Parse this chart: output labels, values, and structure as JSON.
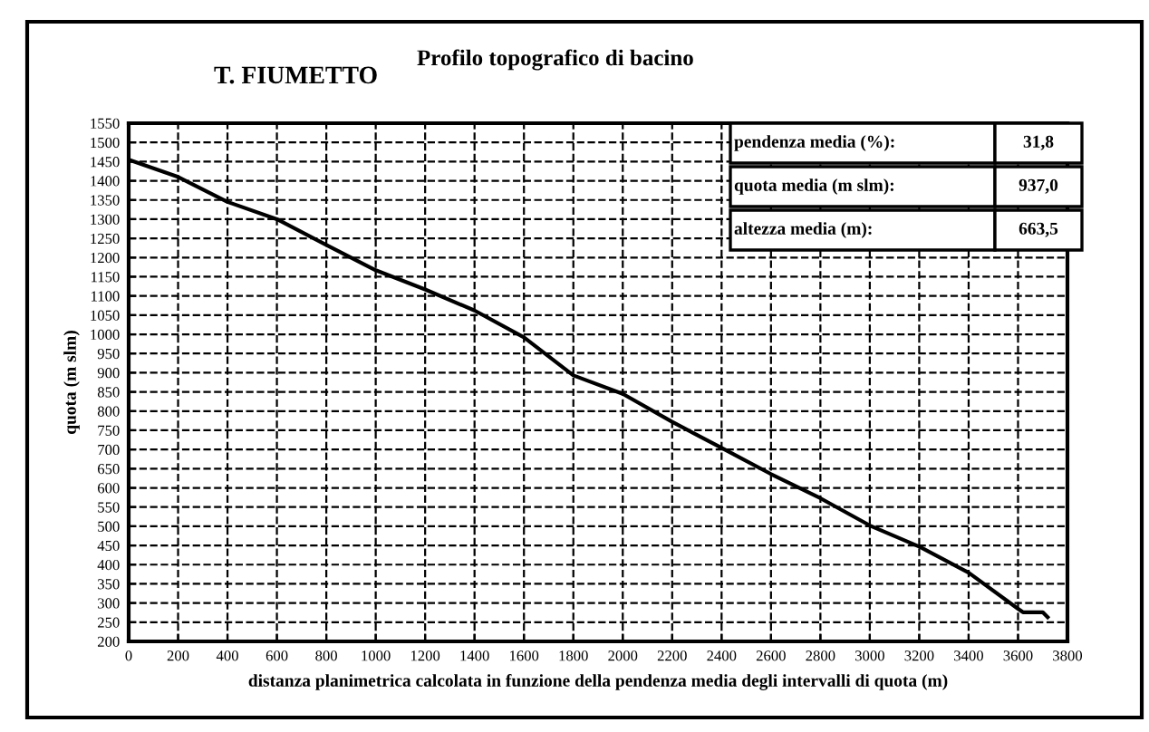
{
  "chart_data": {
    "type": "line",
    "title": "Profilo topografico di bacino",
    "subtitle": "T. FIUMETTO",
    "xlabel": "distanza planimetrica calcolata in funzione della pendenza media degli intervalli di quota (m)",
    "ylabel": "quota (m slm)",
    "annotations": [
      "pendenza media (%):",
      "31,8",
      "quota media (m slm):",
      "937,0",
      "altezza media (m):",
      "663,5"
    ],
    "series": [
      {
        "color": "#000000",
        "x": [
          0,
          200,
          400,
          600,
          800,
          1000,
          1200,
          1400,
          1600,
          1800,
          2000,
          2200,
          2400,
          2600,
          2800,
          3000,
          3200,
          3400,
          3600,
          3620,
          3700,
          3720
        ],
        "values": [
          1455,
          1410,
          1345,
          1300,
          1233,
          1167,
          1117,
          1062,
          992,
          893,
          845,
          772,
          704,
          636,
          573,
          502,
          447,
          379,
          285,
          276,
          276,
          263
        ]
      }
    ],
    "xlim": [
      0,
      3800
    ],
    "ylim": [
      200,
      1550
    ],
    "xticks": [
      0,
      200,
      400,
      600,
      800,
      1000,
      1200,
      1400,
      1600,
      1800,
      2000,
      2200,
      2400,
      2600,
      2800,
      3000,
      3200,
      3400,
      3600,
      3800
    ],
    "yticks": [
      200,
      250,
      300,
      350,
      400,
      450,
      500,
      550,
      600,
      650,
      700,
      750,
      800,
      850,
      900,
      950,
      1000,
      1050,
      1100,
      1150,
      1200,
      1250,
      1300,
      1350,
      1400,
      1450,
      1500,
      1550
    ],
    "grid": true,
    "marker": "none",
    "line_style": "solid",
    "legend": false
  }
}
